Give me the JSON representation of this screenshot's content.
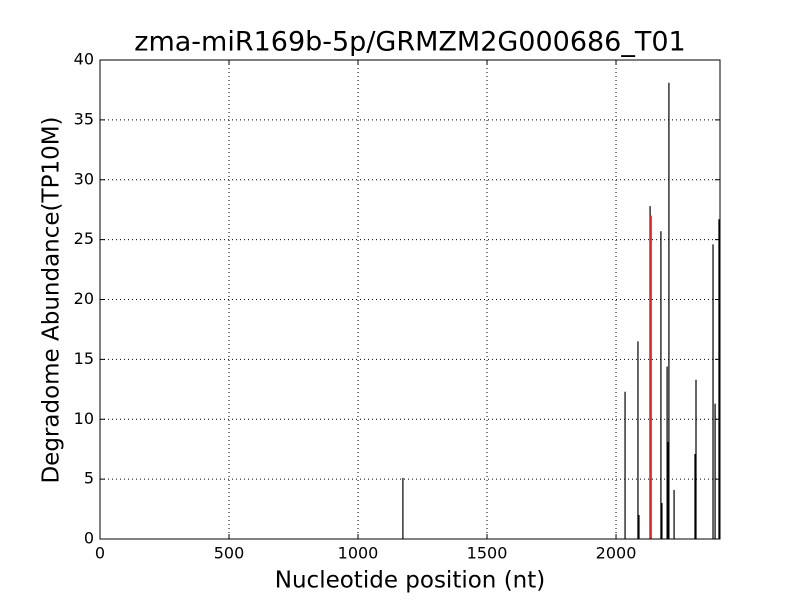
{
  "chart_data": {
    "type": "stem",
    "title": "zma-miR169b-5p/GRMZM2G000686_T01",
    "x_label": "Nucleotide position (nt)",
    "y_label": "Degradome Abundance(TP10M)",
    "xlim": [
      0,
      2403
    ],
    "ylim": [
      0,
      40
    ],
    "xticks": [
      0,
      500,
      1000,
      1500,
      2000
    ],
    "yticks": [
      0,
      5,
      10,
      15,
      20,
      25,
      30,
      35,
      40
    ],
    "grid": true,
    "series": [
      {
        "color": "#000000",
        "x": [
          1174,
          2035,
          2085,
          2089,
          2132,
          2174,
          2178,
          2198,
          2202,
          2205,
          2225,
          2306,
          2310,
          2376,
          2384,
          2399
        ],
        "values": [
          5.1,
          12.3,
          16.5,
          2.0,
          27.8,
          25.7,
          3.0,
          14.4,
          8.1,
          38.1,
          4.1,
          7.1,
          13.3,
          24.6,
          11.3,
          26.7
        ]
      },
      {
        "color": "#d62728",
        "x": [
          2135
        ],
        "values": [
          27.0
        ]
      }
    ]
  }
}
